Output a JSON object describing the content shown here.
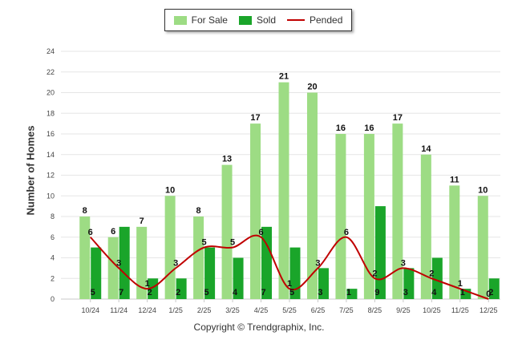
{
  "chart_data": {
    "type": "bar",
    "title": "",
    "xlabel": "",
    "ylabel": "Number of Homes",
    "ylim": [
      0,
      24
    ],
    "yticks": [
      0,
      2,
      4,
      6,
      8,
      10,
      12,
      14,
      16,
      18,
      20,
      22,
      24
    ],
    "categories": [
      "10/24",
      "11/24",
      "12/24",
      "1/25",
      "2/25",
      "3/25",
      "4/25",
      "5/25",
      "6/25",
      "7/25",
      "8/25",
      "9/25",
      "10/25",
      "11/25",
      "12/25"
    ],
    "series": [
      {
        "name": "For Sale",
        "type": "bar",
        "color": "#9ddc84",
        "values": [
          8,
          6,
          7,
          10,
          8,
          13,
          17,
          21,
          20,
          16,
          16,
          17,
          14,
          11,
          10
        ]
      },
      {
        "name": "Sold",
        "type": "bar",
        "color": "#1aa52a",
        "values": [
          5,
          7,
          2,
          2,
          5,
          4,
          7,
          5,
          3,
          1,
          9,
          3,
          4,
          1,
          2
        ]
      },
      {
        "name": "Pended",
        "type": "line",
        "color": "#c00000",
        "values": [
          6,
          3,
          1,
          3,
          5,
          5,
          6,
          1,
          3,
          6,
          2,
          3,
          2,
          1,
          0
        ]
      }
    ],
    "legend_position": "top-center"
  },
  "footer": {
    "copyright": "Copyright © Trendgraphix, Inc."
  }
}
